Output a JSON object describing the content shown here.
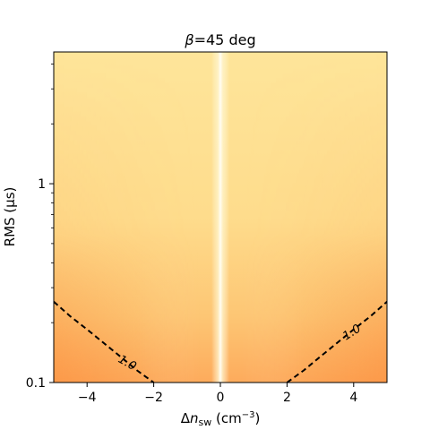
{
  "chart_data": {
    "type": "heatmap",
    "title_prefix": "β",
    "title_suffix": "=45 deg",
    "xlabel_prefix": "Δ",
    "xlabel_var": "n",
    "xlabel_sub": "sw",
    "xlabel_unit_open": " (cm",
    "xlabel_unit_sup": "−3",
    "xlabel_unit_close": ")",
    "ylabel": "RMS (μs)",
    "x_range": [
      -5,
      5
    ],
    "y_range": [
      0.1,
      4.6
    ],
    "y_scale": "log",
    "x_ticks": [
      {
        "value": -4,
        "label": "−4"
      },
      {
        "value": -2,
        "label": "−2"
      },
      {
        "value": 0,
        "label": "0"
      },
      {
        "value": 2,
        "label": "2"
      },
      {
        "value": 4,
        "label": "4"
      }
    ],
    "y_ticks": [
      {
        "value": 0.1,
        "label": "0.1"
      },
      {
        "value": 1,
        "label": "1"
      }
    ],
    "colormap": {
      "low": "#fff5c8",
      "mid": "#fed87e",
      "high": "#fb9a48"
    },
    "contours": [
      {
        "level": 1.0,
        "label": "1.0",
        "style": "dashed",
        "color": "#000000",
        "branches": [
          {
            "points": [
              [
                -5,
                0.255
              ],
              [
                -4.5,
                0.215
              ],
              [
                -4,
                0.185
              ],
              [
                -3.5,
                0.158
              ],
              [
                -3,
                0.135
              ],
              [
                -2.5,
                0.115
              ],
              [
                -2,
                0.1
              ]
            ]
          },
          {
            "points": [
              [
                2,
                0.1
              ],
              [
                2.5,
                0.115
              ],
              [
                3,
                0.135
              ],
              [
                3.5,
                0.158
              ],
              [
                4,
                0.185
              ],
              [
                4.5,
                0.215
              ],
              [
                5,
                0.255
              ]
            ]
          }
        ]
      }
    ],
    "contour_labels": [
      {
        "text": "1.0",
        "x": -2.8,
        "y": 0.125
      },
      {
        "text": "1.0",
        "x": 3.95,
        "y": 0.178
      }
    ]
  }
}
